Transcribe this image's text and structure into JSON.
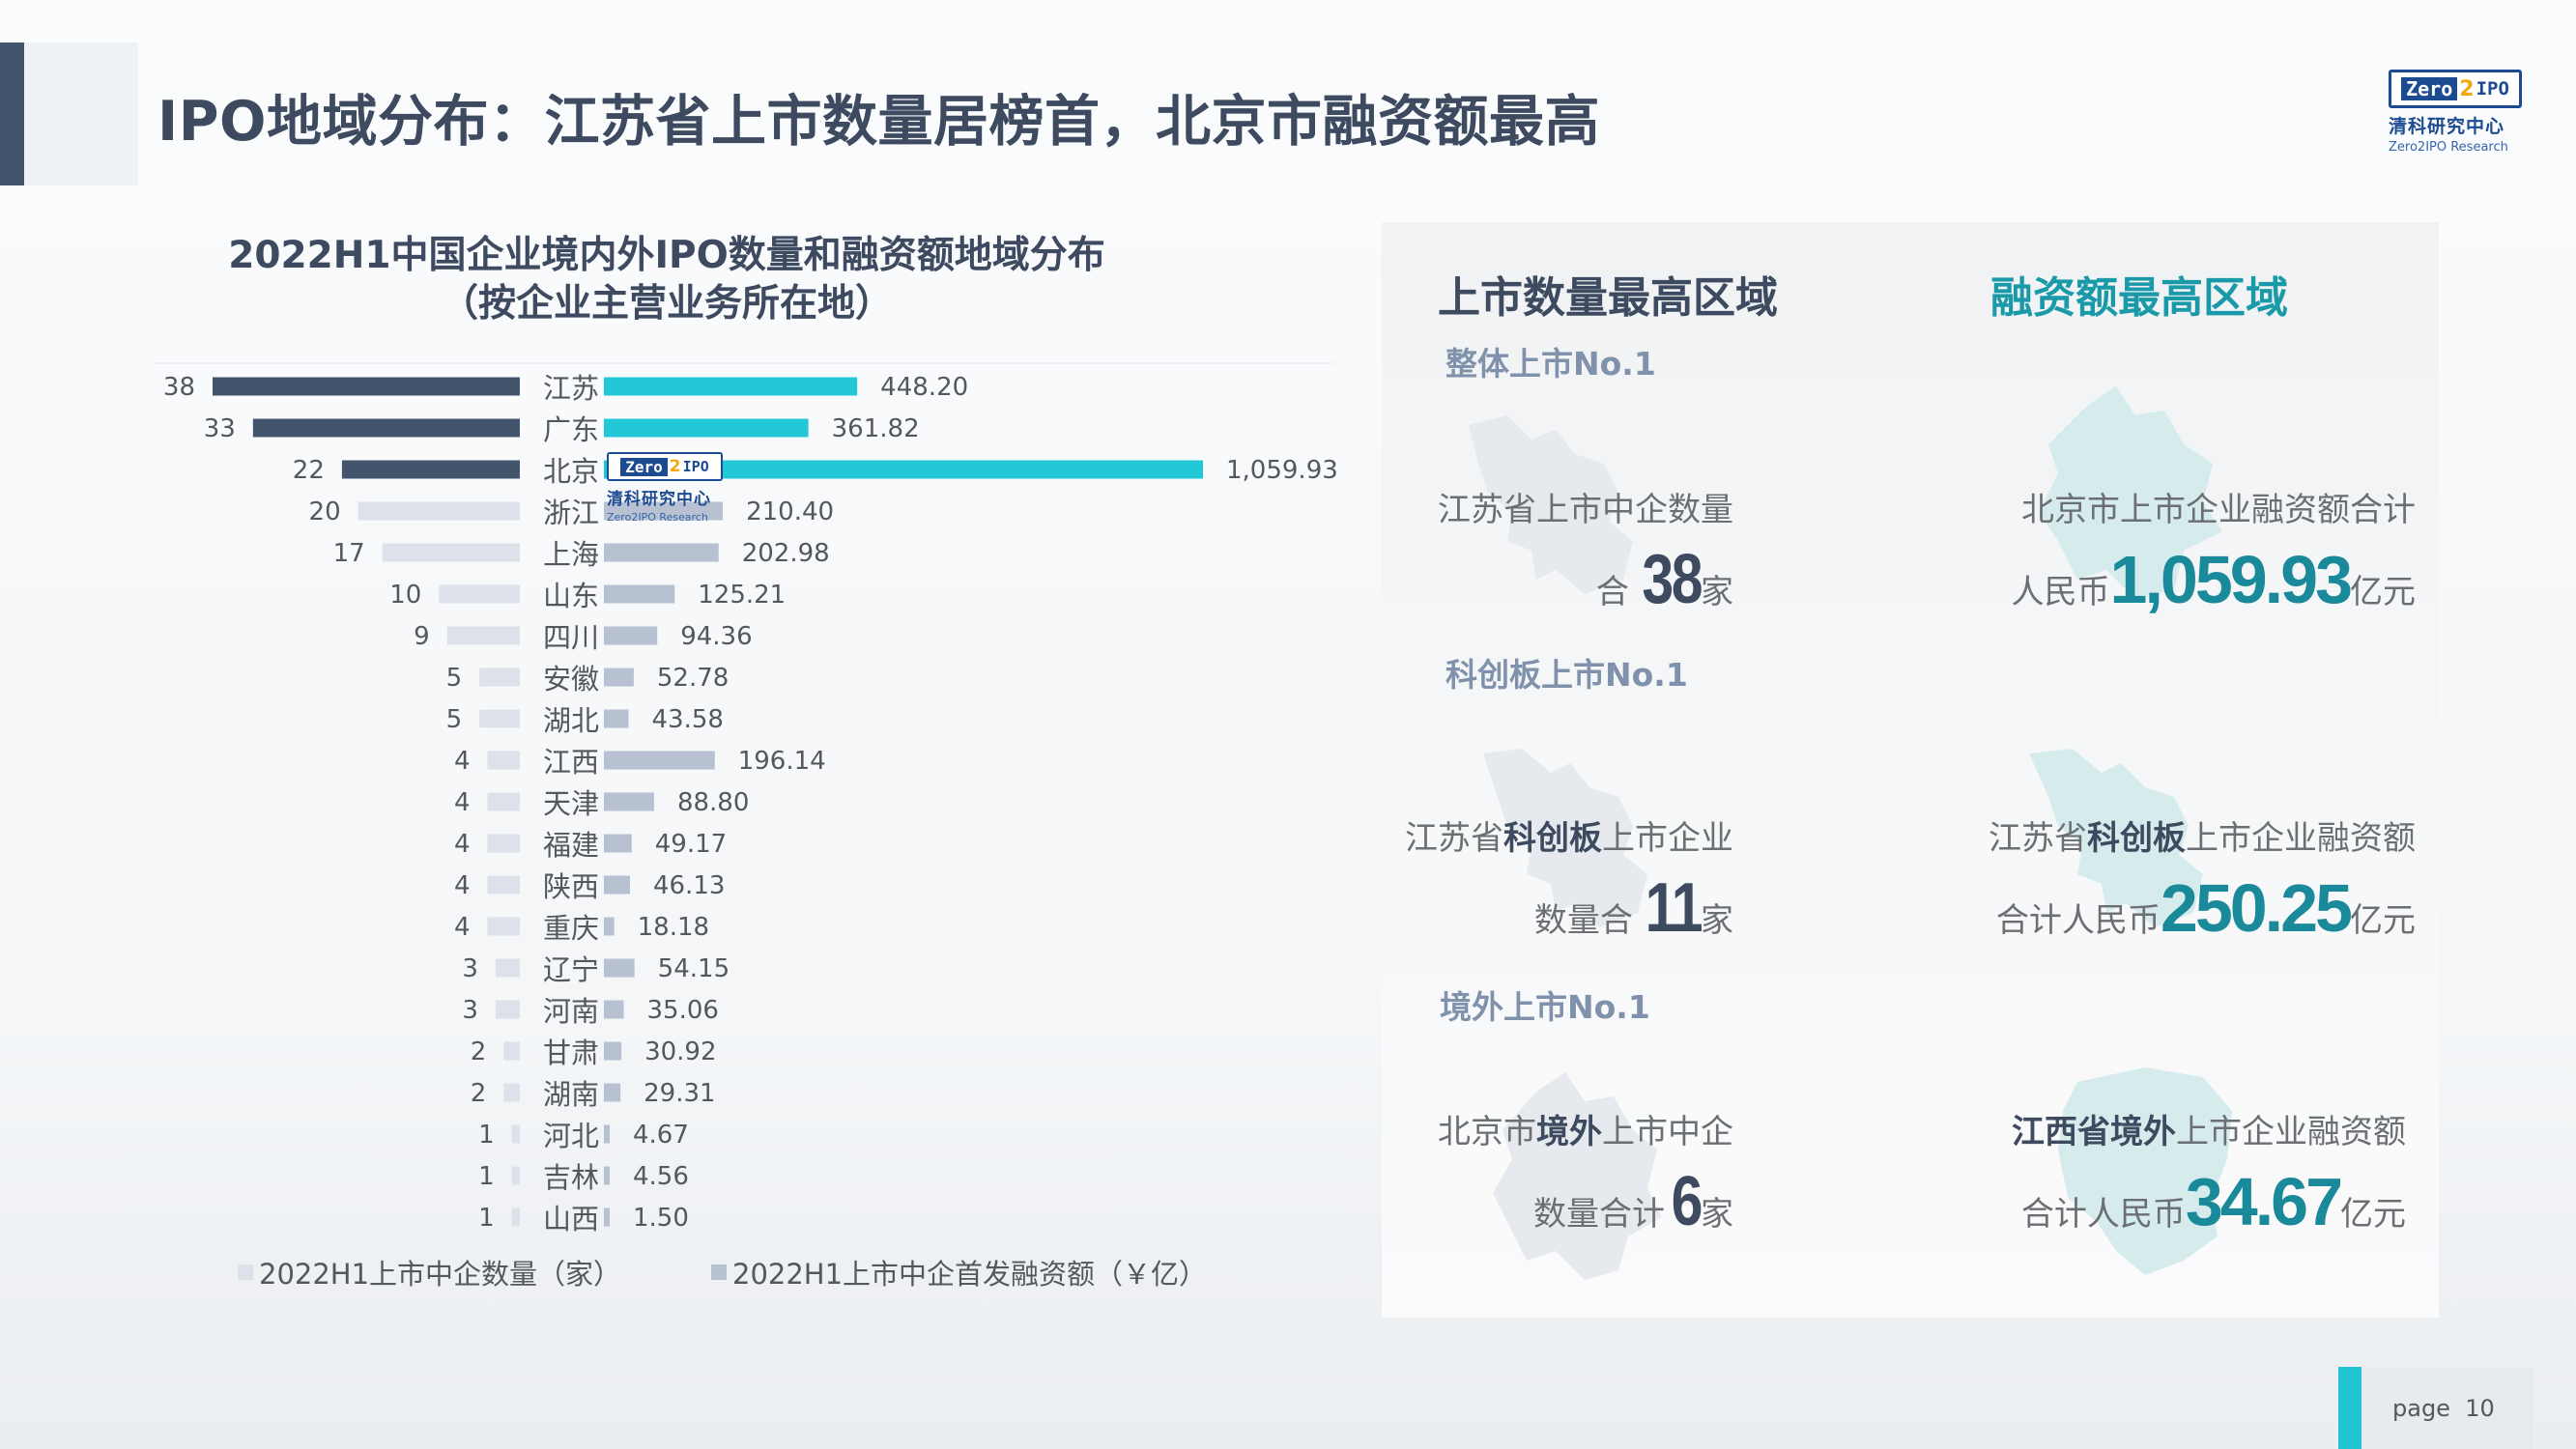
{
  "header": {
    "title": "IPO地域分布：江苏省上市数量居榜首，北京市融资额最高"
  },
  "logo": {
    "badge_zero": "Zero",
    "badge_two": "2",
    "badge_ipo": "IPO",
    "name_cn": "清科研究中心",
    "name_en": "Zero2IPO Research"
  },
  "chart_data": {
    "type": "bar",
    "title": "2022H1中国企业境内外IPO数量和融资额地域分布",
    "subtitle": "（按企业主营业务所在地）",
    "categories": [
      "江苏",
      "广东",
      "北京",
      "浙江",
      "上海",
      "山东",
      "四川",
      "安徽",
      "湖北",
      "江西",
      "天津",
      "福建",
      "陕西",
      "重庆",
      "辽宁",
      "河南",
      "甘肃",
      "湖南",
      "河北",
      "吉林",
      "山西"
    ],
    "series": [
      {
        "name": "2022H1上市中企数量（家）",
        "values": [
          38,
          33,
          22,
          20,
          17,
          10,
          9,
          5,
          5,
          4,
          4,
          4,
          4,
          4,
          3,
          3,
          2,
          2,
          1,
          1,
          1
        ],
        "labels": [
          "38",
          "33",
          "22",
          "20",
          "17",
          "10",
          "9",
          "5",
          "5",
          "4",
          "4",
          "4",
          "4",
          "4",
          "3",
          "3",
          "2",
          "2",
          "1",
          "1",
          "1"
        ]
      },
      {
        "name": "2022H1上市中企首发融资额（￥亿）",
        "values": [
          448.2,
          361.82,
          1059.93,
          210.4,
          202.98,
          125.21,
          94.36,
          52.78,
          43.58,
          196.14,
          88.8,
          49.17,
          46.13,
          18.18,
          54.15,
          35.06,
          30.92,
          29.31,
          4.67,
          4.56,
          1.5
        ],
        "labels": [
          "448.20",
          "361.82",
          "1,059.93",
          "210.40",
          "202.98",
          "125.21",
          "94.36",
          "52.78",
          "43.58",
          "196.14",
          "88.80",
          "49.17",
          "46.13",
          "18.18",
          "54.15",
          "35.06",
          "30.92",
          "29.31",
          "4.67",
          "4.56",
          "1.50"
        ]
      }
    ],
    "highlight_count": 3,
    "highlight_amount": 3,
    "colors": {
      "count_top": "#43546d",
      "count_rest": "#dde2ea",
      "amount_top": "#22c8d8",
      "amount_rest": "#b7c1d1",
      "highlight_label": "#1a8a9a"
    },
    "legend_position": "bottom"
  },
  "panel": {
    "left_heading": "上市数量最高区域",
    "right_heading": "融资额最高区域",
    "colors": {
      "left_heading": "#3d4a60",
      "right_heading": "#1a9aa8"
    },
    "sections": [
      {
        "heading": "整体上市No.1",
        "left": {
          "line1": "江苏省上市中企数量",
          "pre": "合",
          "number": "38",
          "unit": "家"
        },
        "right": {
          "line1": "北京市上市企业融资额合计",
          "pre": "人民币",
          "number": "1,059.93",
          "unit": "亿元"
        }
      },
      {
        "heading": "科创板上市No.1",
        "left": {
          "line1_a": "江苏省",
          "line1_b": "科创板",
          "line1_c": "上市企业",
          "pre": "数量合",
          "number": "11",
          "unit": "家"
        },
        "right": {
          "line1_a": "江苏省",
          "line1_b": "科创板",
          "line1_c": "上市企业融资额",
          "pre": "合计人民币",
          "number": "250.25",
          "unit": "亿元"
        }
      },
      {
        "heading": "境外上市No.1",
        "left": {
          "line1_a": "北京市",
          "line1_b": "境外",
          "line1_c": "上市中企",
          "pre": "数量合计",
          "number": "6",
          "unit": "家"
        },
        "right": {
          "line1_a": "江西省",
          "line1_b": "境外",
          "line1_c": "上市企业融资额",
          "pre": "合计人民币",
          "number": "34.67",
          "unit": "亿元"
        }
      }
    ]
  },
  "footer": {
    "page_label": "page",
    "page_number": "10"
  }
}
